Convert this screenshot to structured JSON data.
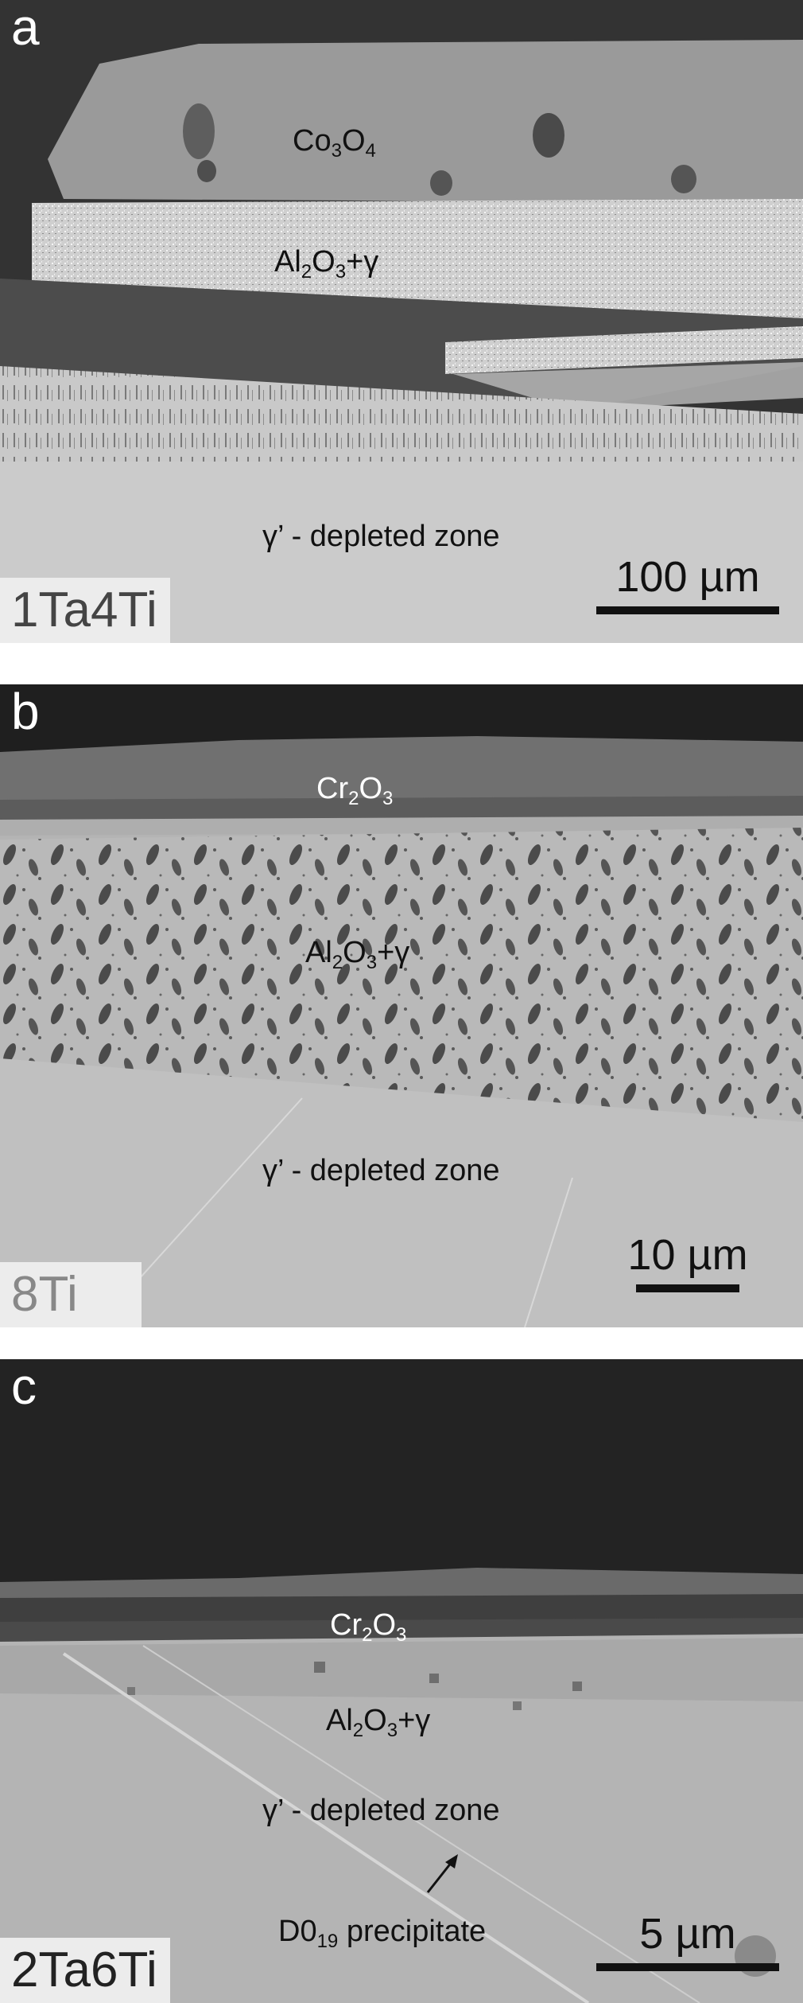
{
  "panels": [
    {
      "letter": "a",
      "sample": "1Ta4Ti",
      "scale_bar": "100 µm",
      "labels": {
        "top_oxide": {
          "base": "Co",
          "s1": "3",
          "mid": "O",
          "s2": "4",
          "tail": ""
        },
        "mixed": {
          "base": "Al",
          "s1": "2",
          "mid": "O",
          "s2": "3",
          "tail": "+γ"
        },
        "zone": "γ’  - depleted zone"
      }
    },
    {
      "letter": "b",
      "sample": "8Ti",
      "scale_bar": "10 µm",
      "labels": {
        "top_oxide": {
          "base": "Cr",
          "s1": "2",
          "mid": "O",
          "s2": "3",
          "tail": ""
        },
        "mixed": {
          "base": "Al",
          "s1": "2",
          "mid": "O",
          "s2": "3",
          "tail": "+γ"
        },
        "zone": "γ’  - depleted zone"
      }
    },
    {
      "letter": "c",
      "sample": "2Ta6Ti",
      "scale_bar": "5 µm",
      "labels": {
        "top_oxide": {
          "base": "Cr",
          "s1": "2",
          "mid": "O",
          "s2": "3",
          "tail": ""
        },
        "mixed": {
          "base": "Al",
          "s1": "2",
          "mid": "O",
          "s2": "3",
          "tail": "+γ"
        },
        "zone": "γ’  - depleted zone",
        "precipitate": {
          "base": "D0",
          "sub": "19",
          "tail": " precipitate"
        }
      }
    }
  ]
}
